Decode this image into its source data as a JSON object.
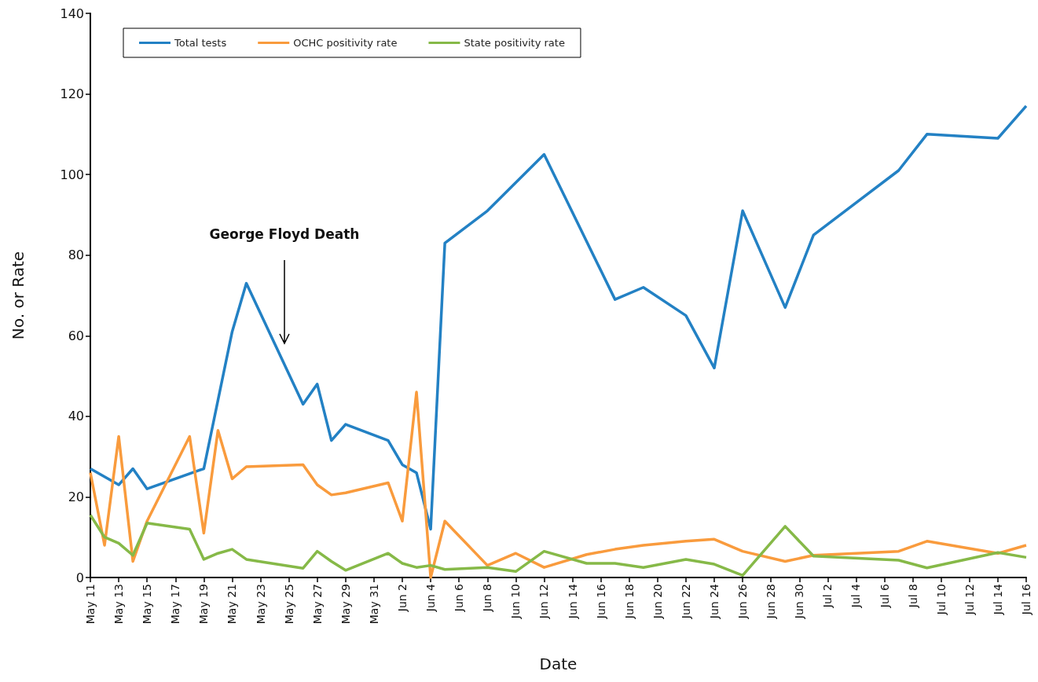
{
  "chart_data": {
    "type": "line",
    "xlabel": "Date",
    "ylabel": "No. or Rate",
    "legend": "top left",
    "grid": false,
    "marker": "none",
    "line_style": "solid",
    "ylim": [
      0,
      140
    ],
    "yticks": [
      0,
      20,
      40,
      60,
      80,
      100,
      120,
      140
    ],
    "xlim": [
      "--05-11",
      "--07-16"
    ],
    "xticks": [
      {
        "value": "--05-11",
        "label": "May 11"
      },
      {
        "value": "--05-13",
        "label": "May 13"
      },
      {
        "value": "--05-15",
        "label": "May 15"
      },
      {
        "value": "--05-17",
        "label": "May 17"
      },
      {
        "value": "--05-19",
        "label": "May 19"
      },
      {
        "value": "--05-21",
        "label": "May 21"
      },
      {
        "value": "--05-23",
        "label": "May 23"
      },
      {
        "value": "--05-25",
        "label": "May 25"
      },
      {
        "value": "--05-27",
        "label": "May 27"
      },
      {
        "value": "--05-29",
        "label": "May 29"
      },
      {
        "value": "--05-31",
        "label": "May 31"
      },
      {
        "value": "--06-02",
        "label": "Jun 2"
      },
      {
        "value": "--06-04",
        "label": "Jun 4"
      },
      {
        "value": "--06-06",
        "label": "Jun 6"
      },
      {
        "value": "--06-08",
        "label": "Jun 8"
      },
      {
        "value": "--06-10",
        "label": "Jun 10"
      },
      {
        "value": "--06-12",
        "label": "Jun 12"
      },
      {
        "value": "--06-14",
        "label": "Jun 14"
      },
      {
        "value": "--06-16",
        "label": "Jun 16"
      },
      {
        "value": "--06-18",
        "label": "Jun 18"
      },
      {
        "value": "--06-20",
        "label": "Jun 20"
      },
      {
        "value": "--06-22",
        "label": "Jun 22"
      },
      {
        "value": "--06-24",
        "label": "Jun 24"
      },
      {
        "value": "--06-26",
        "label": "Jun 26"
      },
      {
        "value": "--06-28",
        "label": "Jun 28"
      },
      {
        "value": "--06-30",
        "label": "Jun 30"
      },
      {
        "value": "--07-02",
        "label": "Jul 2"
      },
      {
        "value": "--07-04",
        "label": "Jul 4"
      },
      {
        "value": "--07-06",
        "label": "Jul 6"
      },
      {
        "value": "--07-08",
        "label": "Jul 8"
      },
      {
        "value": "--07-10",
        "label": "Jul 10"
      },
      {
        "value": "--07-12",
        "label": "Jul 12"
      },
      {
        "value": "--07-14",
        "label": "Jul 14"
      },
      {
        "value": "--07-16",
        "label": "Jul 16"
      }
    ],
    "annotations": [
      "George Floyd Death"
    ],
    "series": [
      {
        "name": "Total tests",
        "color": "#2381c4",
        "x": [
          "--05-11",
          "--05-13",
          "--05-14",
          "--05-15",
          "--05-19",
          "--05-21",
          "--05-22",
          "--05-26",
          "--05-27",
          "--05-28",
          "--05-29",
          "--06-01",
          "--06-02",
          "--06-03",
          "--06-04",
          "--06-05",
          "--06-08",
          "--06-12",
          "--06-17",
          "--06-19",
          "--06-22",
          "--06-24",
          "--06-26",
          "--06-29",
          "--07-01",
          "--07-07",
          "--07-09",
          "--07-14",
          "--07-16"
        ],
        "values": [
          27,
          23,
          27,
          22,
          27,
          61,
          73,
          43,
          48,
          34,
          38,
          34,
          28,
          26,
          12,
          83,
          91,
          105,
          69,
          72,
          65,
          52,
          91,
          67,
          85,
          101,
          110,
          109,
          117
        ]
      },
      {
        "name": "OCHC positivity rate",
        "color": "#f99b3d",
        "x": [
          "--05-11",
          "--05-12",
          "--05-13",
          "--05-14",
          "--05-15",
          "--05-18",
          "--05-19",
          "--05-20",
          "--05-21",
          "--05-22",
          "--05-26",
          "--05-27",
          "--05-28",
          "--05-29",
          "--06-01",
          "--06-02",
          "--06-03",
          "--06-04",
          "--06-05",
          "--06-08",
          "--06-10",
          "--06-12",
          "--06-15",
          "--06-17",
          "--06-19",
          "--06-22",
          "--06-24",
          "--06-26",
          "--06-29",
          "--07-01",
          "--07-07",
          "--07-09",
          "--07-14",
          "--07-16"
        ],
        "values": [
          26,
          8,
          35,
          4,
          14,
          35,
          11,
          36.5,
          24.5,
          27.5,
          28,
          23,
          20.5,
          21,
          23.5,
          14,
          46,
          0,
          14,
          3,
          6,
          2.5,
          5.7,
          7,
          8,
          9,
          9.5,
          6.5,
          4,
          5.5,
          6.5,
          9,
          6,
          8
        ]
      },
      {
        "name": "State positivity rate",
        "color": "#86b948",
        "x": [
          "--05-11",
          "--05-12",
          "--05-13",
          "--05-14",
          "--05-15",
          "--05-18",
          "--05-19",
          "--05-20",
          "--05-21",
          "--05-22",
          "--05-26",
          "--05-27",
          "--05-28",
          "--05-29",
          "--06-01",
          "--06-02",
          "--06-03",
          "--06-04",
          "--06-05",
          "--06-08",
          "--06-10",
          "--06-12",
          "--06-15",
          "--06-17",
          "--06-19",
          "--06-22",
          "--06-24",
          "--06-26",
          "--06-29",
          "--07-01",
          "--07-07",
          "--07-09",
          "--07-14",
          "--07-16"
        ],
        "values": [
          15.5,
          10,
          8.5,
          5.5,
          13.5,
          12,
          4.5,
          6,
          7,
          4.5,
          2.3,
          6.5,
          4,
          1.8,
          6,
          3.5,
          2.5,
          3,
          2,
          2.5,
          1.5,
          6.5,
          3.5,
          3.5,
          2.5,
          4.5,
          3.3,
          0.5,
          12.7,
          5.3,
          4.3,
          2.4,
          6.2,
          5
        ]
      }
    ]
  }
}
